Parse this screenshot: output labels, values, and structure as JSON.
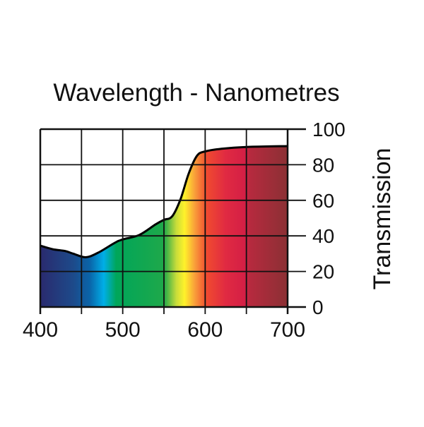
{
  "chart_data": {
    "type": "area",
    "title": "Wavelength - Nanometres",
    "xlabel": "Wavelength - Nanometres",
    "ylabel": "Transmission",
    "xlim": [
      400,
      700
    ],
    "ylim": [
      0,
      100
    ],
    "x_ticks": [
      "400",
      "500",
      "600",
      "700"
    ],
    "y_ticks": [
      "0",
      "20",
      "40",
      "60",
      "80",
      "100"
    ],
    "grid": true,
    "series": [
      {
        "name": "Transmission",
        "x": [
          400,
          415,
          430,
          440,
          455,
          470,
          490,
          500,
          520,
          540,
          550,
          560,
          570,
          580,
          590,
          600,
          620,
          650,
          700
        ],
        "y": [
          34.5,
          32.5,
          31.5,
          30,
          28,
          30.5,
          36,
          38,
          40.5,
          46.5,
          49,
          51,
          60.5,
          75,
          85,
          87.5,
          89,
          90,
          90.5
        ]
      }
    ],
    "spectrum_colors": [
      {
        "nm": 400,
        "color": "#2a2a6e"
      },
      {
        "nm": 440,
        "color": "#1d4a8a"
      },
      {
        "nm": 460,
        "color": "#0a64a8"
      },
      {
        "nm": 477,
        "color": "#00aee8"
      },
      {
        "nm": 492,
        "color": "#00a65a"
      },
      {
        "nm": 550,
        "color": "#1fa84a"
      },
      {
        "nm": 565,
        "color": "#c8dc3a"
      },
      {
        "nm": 575,
        "color": "#fff22a"
      },
      {
        "nm": 587,
        "color": "#f9a13a"
      },
      {
        "nm": 602,
        "color": "#f04a30"
      },
      {
        "nm": 625,
        "color": "#e02a42"
      },
      {
        "nm": 648,
        "color": "#d41f45"
      },
      {
        "nm": 655,
        "color": "#b52a3e"
      },
      {
        "nm": 700,
        "color": "#8b3034"
      }
    ]
  }
}
